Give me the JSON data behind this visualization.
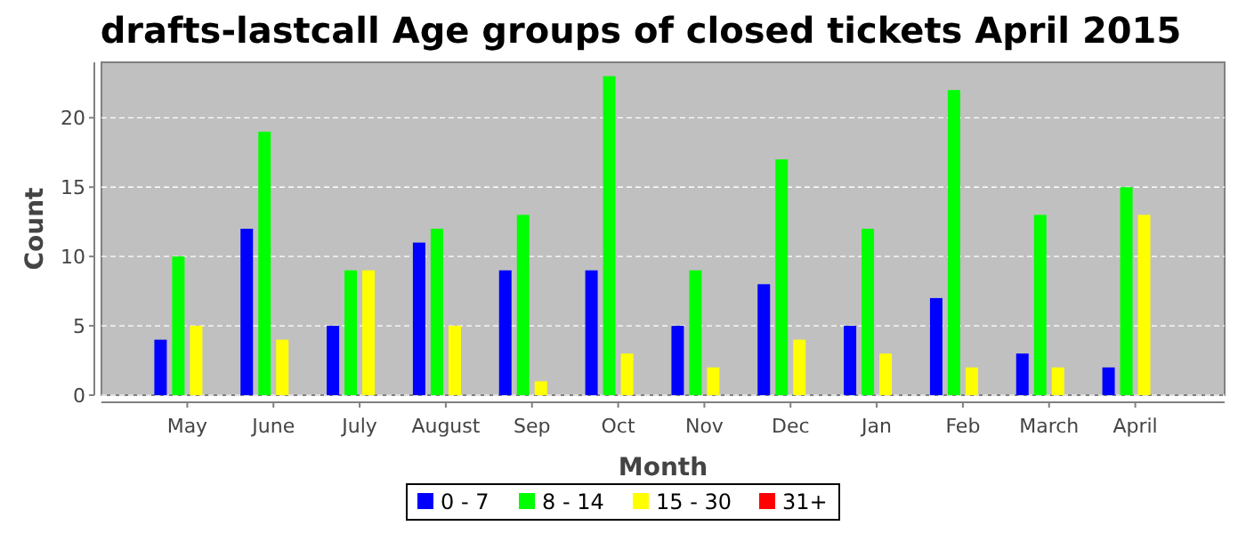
{
  "chart_data": {
    "type": "bar",
    "title": "drafts-lastcall Age groups of closed tickets April 2015",
    "xlabel": "Month",
    "ylabel": "Count",
    "categories": [
      "May",
      "June",
      "July",
      "August",
      "Sep",
      "Oct",
      "Nov",
      "Dec",
      "Jan",
      "Feb",
      "March",
      "April"
    ],
    "series": [
      {
        "name": "0 - 7",
        "color": "#0000ff",
        "values": [
          4,
          12,
          5,
          11,
          9,
          9,
          5,
          8,
          5,
          7,
          3,
          2
        ]
      },
      {
        "name": "8 - 14",
        "color": "#00ff00",
        "values": [
          10,
          19,
          9,
          12,
          13,
          23,
          9,
          17,
          12,
          22,
          13,
          15
        ]
      },
      {
        "name": "15 - 30",
        "color": "#ffff00",
        "values": [
          5,
          4,
          9,
          5,
          1,
          3,
          2,
          4,
          3,
          2,
          2,
          13
        ]
      },
      {
        "name": "31+",
        "color": "#ff0000",
        "values": [
          0,
          0,
          0,
          0,
          0,
          0,
          0,
          0,
          0,
          0,
          0,
          0
        ]
      }
    ],
    "ylim": [
      0,
      24
    ],
    "yticks": [
      0,
      5,
      10,
      15,
      20
    ],
    "grid": "y",
    "legend": "bottom"
  }
}
